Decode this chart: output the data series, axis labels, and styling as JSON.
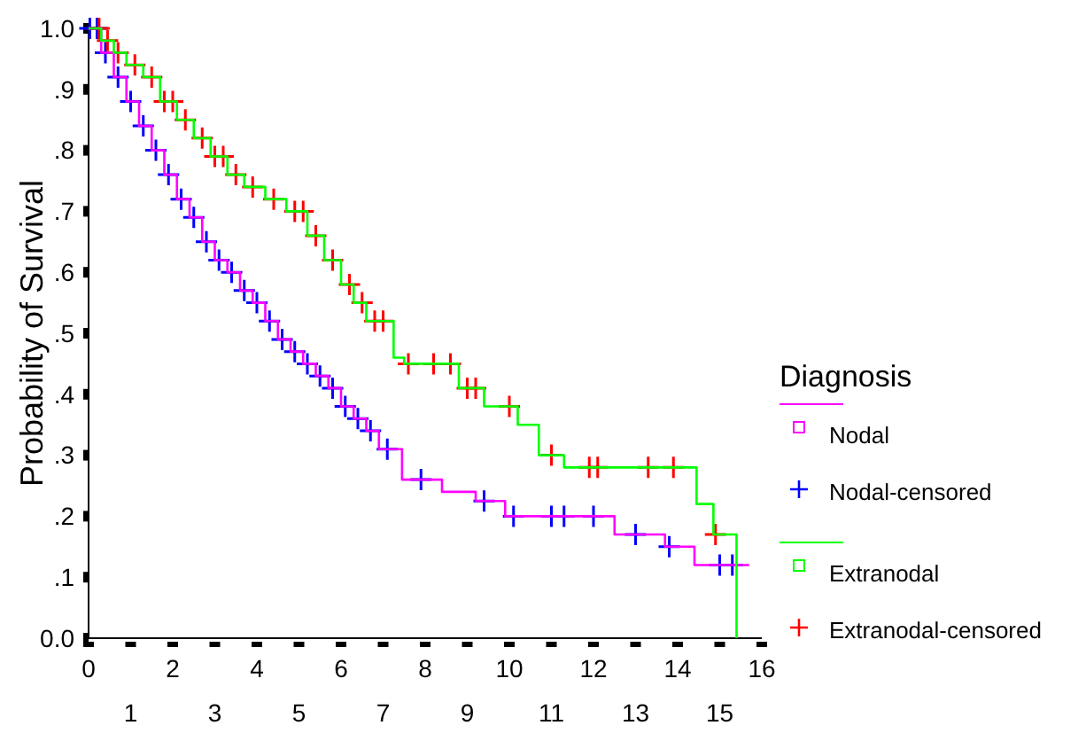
{
  "chart_data": {
    "type": "step",
    "ylabel": "Probability of Survival",
    "legend_title": "Diagnosis",
    "legend": "right",
    "grid": false,
    "xlim": [
      0,
      16
    ],
    "xticks": [
      0,
      2,
      4,
      6,
      8,
      10,
      12,
      14,
      16
    ],
    "x2lim": [
      0,
      16
    ],
    "x2ticks": [
      1,
      3,
      5,
      7,
      9,
      11,
      13,
      15
    ],
    "ylim": [
      0,
      1
    ],
    "yticks": [
      {
        "value": 0,
        "label": "0.0"
      },
      {
        "value": 0.1,
        "label": ".1"
      },
      {
        "value": 0.2,
        "label": ".2"
      },
      {
        "value": 0.3,
        "label": ".3"
      },
      {
        "value": 0.4,
        "label": ".4"
      },
      {
        "value": 0.5,
        "label": ".5"
      },
      {
        "value": 0.6,
        "label": ".6"
      },
      {
        "value": 0.7,
        "label": ".7"
      },
      {
        "value": 0.8,
        "label": ".8"
      },
      {
        "value": 0.9,
        "label": ".9"
      },
      {
        "value": 1,
        "label": "1.0"
      }
    ],
    "series": [
      {
        "name": "Nodal",
        "color": "#ff00ff",
        "x": [
          0,
          0.3,
          0.6,
          0.9,
          1.2,
          1.5,
          1.8,
          2.1,
          2.4,
          2.7,
          3.0,
          3.3,
          3.6,
          3.9,
          4.2,
          4.5,
          4.8,
          5.1,
          5.4,
          5.7,
          6.0,
          6.3,
          6.6,
          6.9,
          7.45,
          8.4,
          9.2,
          9.9,
          12.5,
          13.7,
          14.4,
          15.7
        ],
        "values": [
          1.0,
          0.96,
          0.92,
          0.88,
          0.84,
          0.8,
          0.76,
          0.72,
          0.69,
          0.65,
          0.62,
          0.6,
          0.57,
          0.55,
          0.52,
          0.49,
          0.47,
          0.45,
          0.43,
          0.41,
          0.38,
          0.36,
          0.34,
          0.31,
          0.26,
          0.24,
          0.225,
          0.2,
          0.17,
          0.15,
          0.12,
          0.12
        ]
      },
      {
        "name": "Nodal-censored",
        "type": "scatter",
        "marker": "cross",
        "color": "#0000ff",
        "x": [
          0.03,
          0.2,
          0.4,
          0.7,
          1.0,
          1.3,
          1.6,
          1.9,
          2.2,
          2.5,
          2.8,
          3.1,
          3.4,
          3.7,
          4.0,
          4.3,
          4.6,
          4.9,
          5.2,
          5.5,
          5.8,
          6.1,
          6.4,
          6.7,
          7.1,
          7.9,
          9.4,
          10.1,
          11.0,
          11.3,
          12.0,
          13.0,
          13.8,
          15.0,
          15.3
        ],
        "values": [
          1.0,
          1.0,
          0.96,
          0.92,
          0.88,
          0.84,
          0.8,
          0.76,
          0.72,
          0.69,
          0.65,
          0.62,
          0.6,
          0.57,
          0.55,
          0.52,
          0.49,
          0.47,
          0.45,
          0.43,
          0.41,
          0.38,
          0.36,
          0.34,
          0.31,
          0.26,
          0.225,
          0.2,
          0.2,
          0.2,
          0.2,
          0.17,
          0.15,
          0.12,
          0.12
        ]
      },
      {
        "name": "Extranodal",
        "color": "#00ff00",
        "x": [
          0,
          0.3,
          0.6,
          0.9,
          1.3,
          1.7,
          2.1,
          2.5,
          2.9,
          3.3,
          3.7,
          4.2,
          4.7,
          5.2,
          5.6,
          6.0,
          6.3,
          6.6,
          7.25,
          7.5,
          8.8,
          9.4,
          10.2,
          10.7,
          11.3,
          14.45,
          14.85,
          15.4
        ],
        "values": [
          1.0,
          0.98,
          0.96,
          0.94,
          0.92,
          0.88,
          0.85,
          0.82,
          0.79,
          0.76,
          0.74,
          0.72,
          0.7,
          0.66,
          0.62,
          0.58,
          0.55,
          0.52,
          0.46,
          0.45,
          0.41,
          0.38,
          0.35,
          0.3,
          0.28,
          0.22,
          0.17,
          0.0
        ]
      },
      {
        "name": "Extranodal-censored",
        "type": "scatter",
        "marker": "cross",
        "color": "#ff0000",
        "x": [
          0.25,
          0.45,
          0.7,
          1.1,
          1.5,
          1.8,
          2.0,
          2.3,
          2.7,
          3.0,
          3.2,
          3.5,
          3.9,
          4.4,
          4.9,
          5.1,
          5.4,
          5.8,
          6.2,
          6.5,
          6.8,
          7.0,
          7.6,
          8.2,
          8.6,
          9.0,
          9.2,
          10.0,
          11.0,
          11.9,
          12.1,
          13.3,
          13.9,
          14.9
        ],
        "values": [
          1.0,
          0.98,
          0.96,
          0.94,
          0.92,
          0.88,
          0.88,
          0.85,
          0.82,
          0.79,
          0.79,
          0.76,
          0.74,
          0.72,
          0.7,
          0.7,
          0.66,
          0.62,
          0.58,
          0.55,
          0.52,
          0.52,
          0.45,
          0.45,
          0.45,
          0.41,
          0.41,
          0.38,
          0.3,
          0.28,
          0.28,
          0.28,
          0.28,
          0.17
        ]
      }
    ]
  }
}
